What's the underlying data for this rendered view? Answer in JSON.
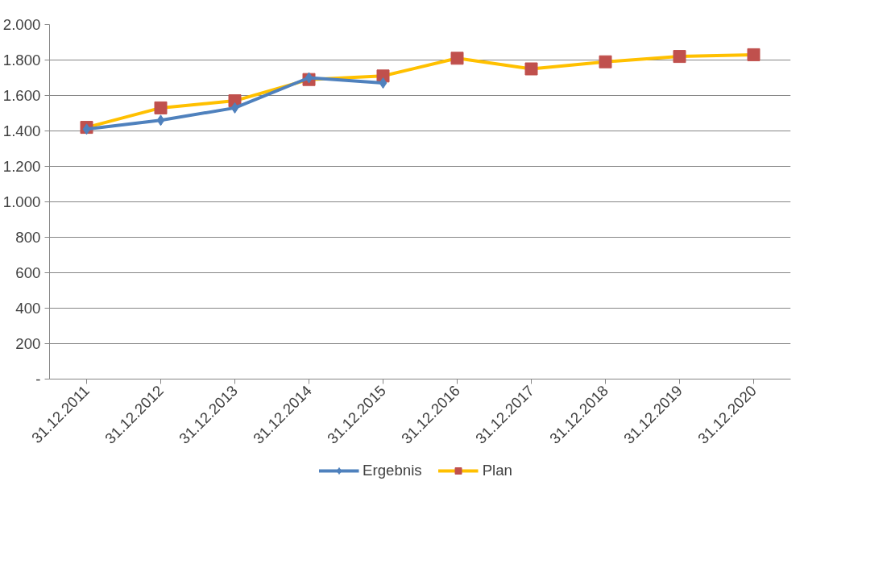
{
  "chart_data": {
    "type": "line",
    "categories": [
      "31.12.2011",
      "31.12.2012",
      "31.12.2013",
      "31.12.2014",
      "31.12.2015",
      "31.12.2016",
      "31.12.2017",
      "31.12.2018",
      "31.12.2019",
      "31.12.2020"
    ],
    "series": [
      {
        "name": "Ergebnis",
        "color": "#4f81bd",
        "marker": "diamond",
        "values": [
          1410,
          1460,
          1530,
          1700,
          1670,
          null,
          null,
          null,
          null,
          null
        ]
      },
      {
        "name": "Plan",
        "color": "#ffc000",
        "colors": [
          "#c0504d",
          "#c0504d",
          "#c0504d",
          "#c0504d",
          "#c0504d",
          "#c0504d",
          "#c0504d",
          "#c0504d",
          "#c0504d",
          "#c0504d"
        ],
        "marker": "square",
        "values": [
          1420,
          1530,
          1570,
          1690,
          1710,
          1810,
          1750,
          1790,
          1820,
          1830
        ]
      }
    ],
    "ylim": [
      0,
      2000
    ],
    "yticks": [
      {
        "value": 0,
        "label": "-"
      },
      {
        "value": 200,
        "label": "200"
      },
      {
        "value": 400,
        "label": "400"
      },
      {
        "value": 600,
        "label": "600"
      },
      {
        "value": 800,
        "label": "800"
      },
      {
        "value": 1000,
        "label": "1.000"
      },
      {
        "value": 1200,
        "label": "1.200"
      },
      {
        "value": 1400,
        "label": "1.400"
      },
      {
        "value": 1600,
        "label": "1.600"
      },
      {
        "value": 1800,
        "label": "1.800"
      },
      {
        "value": 2000,
        "label": "2.000"
      }
    ],
    "grid": "y",
    "legend": "bottom",
    "line_style": "solid"
  }
}
